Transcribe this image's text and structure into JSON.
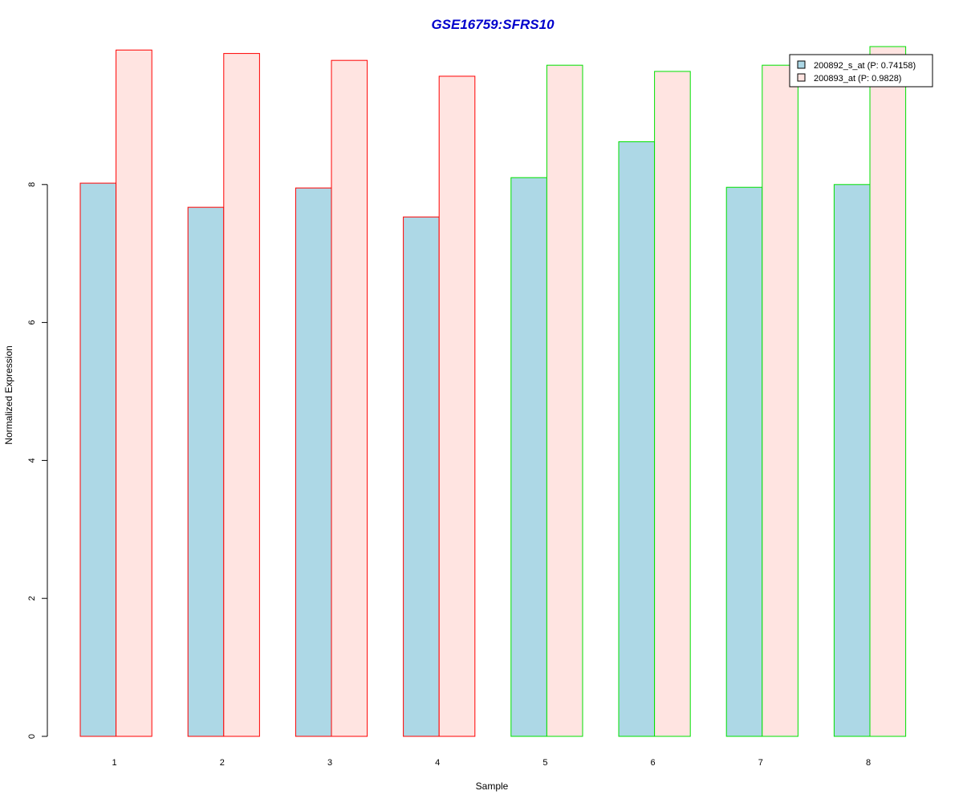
{
  "chart_data": {
    "type": "bar",
    "title": "GSE16759:SFRS10",
    "xlabel": "Sample",
    "ylabel": "Normalized Expression",
    "categories": [
      "1",
      "2",
      "3",
      "4",
      "5",
      "6",
      "7",
      "8"
    ],
    "series": [
      {
        "name": "200892_s_at (P: 0.74158)",
        "values": [
          8.02,
          7.67,
          7.95,
          7.53,
          8.1,
          8.62,
          7.96,
          8.0
        ]
      },
      {
        "name": "200893_at (P: 0.9828)",
        "values": [
          9.95,
          9.9,
          9.8,
          9.57,
          9.73,
          9.64,
          9.73,
          10.0
        ]
      }
    ],
    "group_border_colors": [
      "#ff0000",
      "#ff0000",
      "#ff0000",
      "#ff0000",
      "#00e000",
      "#00e000",
      "#00e000",
      "#00e000"
    ],
    "ylim": [
      0,
      10
    ],
    "yticks": [
      0,
      2,
      4,
      6,
      8
    ],
    "legend_position": "top-right",
    "grid": false
  },
  "colors": {
    "title": "#0000cc",
    "series_fill": [
      "#add8e6",
      "#ffe4e1"
    ]
  }
}
